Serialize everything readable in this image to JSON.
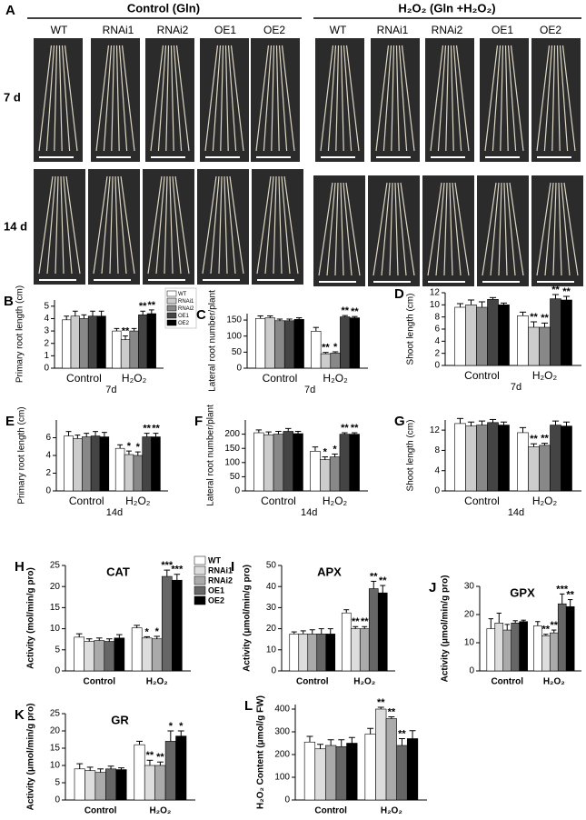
{
  "panel_a": {
    "letter": "A",
    "groups": [
      {
        "title": "Control (Gln)",
        "genotypes": [
          "WT",
          "RNAi1",
          "RNAi2",
          "OE1",
          "OE2"
        ]
      },
      {
        "title": "H₂O₂ (Gln +H₂O₂)",
        "genotypes": [
          "WT",
          "RNAi1",
          "RNAi2",
          "OE1",
          "OE2"
        ]
      }
    ],
    "rows": [
      "7 d",
      "14 d"
    ]
  },
  "chart_data": [
    {
      "type": "bar",
      "panel": "B",
      "ylabel": "Primary root length (cm)",
      "categories": [
        "Control",
        "H₂O₂"
      ],
      "note": "7d",
      "ylim": [
        0,
        5.5
      ],
      "yticks": [
        0,
        1,
        2,
        3,
        4,
        5
      ],
      "legend": true,
      "series": [
        {
          "name": "WT",
          "color": "#ffffff",
          "values": [
            3.9,
            3.0
          ],
          "errors": [
            0.3,
            0.2
          ],
          "annotations": [
            null,
            null
          ]
        },
        {
          "name": "RNAi1",
          "color": "#cccccc",
          "values": [
            4.2,
            2.3
          ],
          "errors": [
            0.4,
            0.3
          ],
          "annotations": [
            null,
            "**"
          ]
        },
        {
          "name": "RNAi2",
          "color": "#888888",
          "values": [
            4.0,
            3.0
          ],
          "errors": [
            0.3,
            0.2
          ],
          "annotations": [
            null,
            null
          ]
        },
        {
          "name": "OE1",
          "color": "#444444",
          "values": [
            4.2,
            4.3
          ],
          "errors": [
            0.4,
            0.3
          ],
          "annotations": [
            null,
            "**"
          ]
        },
        {
          "name": "OE2",
          "color": "#000000",
          "values": [
            4.2,
            4.4
          ],
          "errors": [
            0.4,
            0.3
          ],
          "annotations": [
            null,
            "**"
          ]
        }
      ]
    },
    {
      "type": "bar",
      "panel": "C",
      "ylabel": "Lateral root number/plant",
      "categories": [
        "Control",
        "H₂O₂"
      ],
      "note": "7d",
      "ylim": [
        0,
        170
      ],
      "yticks": [
        0,
        50,
        100,
        150
      ],
      "series": [
        {
          "color": "#ffffff",
          "values": [
            155,
            115
          ],
          "errors": [
            8,
            12
          ],
          "annotations": [
            null,
            null
          ]
        },
        {
          "color": "#cccccc",
          "values": [
            157,
            45
          ],
          "errors": [
            6,
            4
          ],
          "annotations": [
            null,
            "**"
          ]
        },
        {
          "color": "#888888",
          "values": [
            148,
            47
          ],
          "errors": [
            5,
            4
          ],
          "annotations": [
            null,
            "*"
          ]
        },
        {
          "color": "#444444",
          "values": [
            148,
            160
          ],
          "errors": [
            5,
            4
          ],
          "annotations": [
            null,
            "**"
          ]
        },
        {
          "color": "#000000",
          "values": [
            152,
            157
          ],
          "errors": [
            5,
            4
          ],
          "annotations": [
            null,
            "**"
          ]
        }
      ]
    },
    {
      "type": "bar",
      "panel": "D",
      "ylabel": "Shoot length (cm)",
      "categories": [
        "Control",
        "H₂O₂"
      ],
      "note": "7d",
      "ylim": [
        0,
        12
      ],
      "yticks": [
        0,
        2,
        4,
        6,
        8,
        10,
        12
      ],
      "series": [
        {
          "color": "#ffffff",
          "values": [
            9.6,
            8.2
          ],
          "errors": [
            0.6,
            0.6
          ],
          "annotations": [
            null,
            null
          ]
        },
        {
          "color": "#cccccc",
          "values": [
            10.0,
            6.3
          ],
          "errors": [
            0.8,
            0.9
          ],
          "annotations": [
            null,
            "**"
          ]
        },
        {
          "color": "#888888",
          "values": [
            9.6,
            6.3
          ],
          "errors": [
            0.9,
            0.7
          ],
          "annotations": [
            null,
            "**"
          ]
        },
        {
          "color": "#444444",
          "values": [
            10.9,
            11.0
          ],
          "errors": [
            0.3,
            0.7
          ],
          "annotations": [
            null,
            "**"
          ]
        },
        {
          "color": "#000000",
          "values": [
            10.0,
            10.8
          ],
          "errors": [
            0.3,
            0.6
          ],
          "annotations": [
            null,
            "**"
          ]
        }
      ]
    },
    {
      "type": "bar",
      "panel": "E",
      "ylabel": "Primary root length (cm)",
      "categories": [
        "Control",
        "H₂O₂"
      ],
      "note": "14d",
      "ylim": [
        0,
        8
      ],
      "yticks": [
        0,
        2,
        4,
        6
      ],
      "series": [
        {
          "color": "#ffffff",
          "values": [
            6.2,
            4.8
          ],
          "errors": [
            0.5,
            0.4
          ],
          "annotations": [
            null,
            null
          ]
        },
        {
          "color": "#cccccc",
          "values": [
            5.9,
            4.1
          ],
          "errors": [
            0.4,
            0.4
          ],
          "annotations": [
            null,
            "*"
          ]
        },
        {
          "color": "#888888",
          "values": [
            6.1,
            4.0
          ],
          "errors": [
            0.4,
            0.4
          ],
          "annotations": [
            null,
            "*"
          ]
        },
        {
          "color": "#444444",
          "values": [
            6.2,
            6.1
          ],
          "errors": [
            0.5,
            0.4
          ],
          "annotations": [
            null,
            "**"
          ]
        },
        {
          "color": "#000000",
          "values": [
            6.1,
            6.1
          ],
          "errors": [
            0.5,
            0.4
          ],
          "annotations": [
            null,
            "**"
          ]
        }
      ]
    },
    {
      "type": "bar",
      "panel": "F",
      "ylabel": "Lateral root number/plant",
      "categories": [
        "Control",
        "H₂O₂"
      ],
      "note": "14d",
      "ylim": [
        0,
        250
      ],
      "yticks": [
        0,
        50,
        100,
        150,
        200
      ],
      "series": [
        {
          "color": "#ffffff",
          "values": [
            205,
            140
          ],
          "errors": [
            10,
            15
          ],
          "annotations": [
            null,
            null
          ]
        },
        {
          "color": "#cccccc",
          "values": [
            198,
            110
          ],
          "errors": [
            10,
            10
          ],
          "annotations": [
            null,
            "*"
          ]
        },
        {
          "color": "#888888",
          "values": [
            200,
            120
          ],
          "errors": [
            10,
            10
          ],
          "annotations": [
            null,
            "*"
          ]
        },
        {
          "color": "#444444",
          "values": [
            210,
            200
          ],
          "errors": [
            10,
            5
          ],
          "annotations": [
            null,
            "**"
          ]
        },
        {
          "color": "#000000",
          "values": [
            202,
            200
          ],
          "errors": [
            8,
            5
          ],
          "annotations": [
            null,
            "**"
          ]
        }
      ]
    },
    {
      "type": "bar",
      "panel": "G",
      "ylabel": "Shoot length (cm)",
      "categories": [
        "Control",
        "H₂O₂"
      ],
      "note": "14d",
      "ylim": [
        0,
        14
      ],
      "yticks": [
        0,
        4,
        8,
        12
      ],
      "series": [
        {
          "color": "#ffffff",
          "values": [
            13.3,
            11.5
          ],
          "errors": [
            1.0,
            1.0
          ],
          "annotations": [
            null,
            null
          ]
        },
        {
          "color": "#cccccc",
          "values": [
            12.8,
            8.7
          ],
          "errors": [
            0.8,
            0.6
          ],
          "annotations": [
            null,
            "**"
          ]
        },
        {
          "color": "#888888",
          "values": [
            13.0,
            9.0
          ],
          "errors": [
            0.8,
            0.4
          ],
          "annotations": [
            null,
            "**"
          ]
        },
        {
          "color": "#444444",
          "values": [
            13.5,
            13.0
          ],
          "errors": [
            0.6,
            0.8
          ],
          "annotations": [
            null,
            null
          ]
        },
        {
          "color": "#000000",
          "values": [
            13.0,
            12.8
          ],
          "errors": [
            0.6,
            0.8
          ],
          "annotations": [
            null,
            null
          ]
        }
      ]
    },
    {
      "type": "bar",
      "panel": "H",
      "title": "CAT",
      "ylabel": "Activity (mol/min/g pro)",
      "categories": [
        "Control",
        "H₂O₂"
      ],
      "ylim": [
        0,
        25
      ],
      "yticks": [
        0,
        5,
        10,
        15,
        20,
        25
      ],
      "legend": true,
      "series": [
        {
          "name": "WT",
          "color": "#ffffff",
          "values": [
            8.0,
            10.2
          ],
          "errors": [
            0.8,
            0.6
          ],
          "annotations": [
            null,
            null
          ]
        },
        {
          "name": "RNAi1",
          "color": "#dddddd",
          "values": [
            7.0,
            7.8
          ],
          "errors": [
            0.6,
            0.3
          ],
          "annotations": [
            null,
            "*"
          ]
        },
        {
          "name": "RNAi2",
          "color": "#aaaaaa",
          "values": [
            7.2,
            7.6
          ],
          "errors": [
            0.6,
            0.6
          ],
          "annotations": [
            null,
            "*"
          ]
        },
        {
          "name": "OE1",
          "color": "#666666",
          "values": [
            7.0,
            22.4
          ],
          "errors": [
            0.6,
            1.5
          ],
          "annotations": [
            null,
            "***"
          ]
        },
        {
          "name": "OE2",
          "color": "#000000",
          "values": [
            7.8,
            21.5
          ],
          "errors": [
            0.8,
            1.4
          ],
          "annotations": [
            null,
            "***"
          ]
        }
      ]
    },
    {
      "type": "bar",
      "panel": "I",
      "title": "APX",
      "ylabel": "Activity (μmol/min/g pro)",
      "categories": [
        "Control",
        "H₂O₂"
      ],
      "ylim": [
        0,
        50
      ],
      "yticks": [
        0,
        10,
        20,
        30,
        40,
        50
      ],
      "series": [
        {
          "color": "#ffffff",
          "values": [
            17.5,
            27.5
          ],
          "errors": [
            1.0,
            1.5
          ],
          "annotations": [
            null,
            null
          ]
        },
        {
          "color": "#dddddd",
          "values": [
            17.5,
            20
          ],
          "errors": [
            1.5,
            1.0
          ],
          "annotations": [
            null,
            "**"
          ]
        },
        {
          "color": "#aaaaaa",
          "values": [
            17.5,
            20
          ],
          "errors": [
            2.0,
            1.0
          ],
          "annotations": [
            null,
            "**"
          ]
        },
        {
          "color": "#666666",
          "values": [
            17.5,
            39
          ],
          "errors": [
            2.5,
            3.5
          ],
          "annotations": [
            null,
            "**"
          ]
        },
        {
          "color": "#000000",
          "values": [
            17.5,
            37
          ],
          "errors": [
            2.5,
            3.5
          ],
          "annotations": [
            null,
            "**"
          ]
        }
      ]
    },
    {
      "type": "bar",
      "panel": "J",
      "title": "GPX",
      "ylabel": "Activity (μmol/min/g pro)",
      "categories": [
        "Control",
        "H₂O₂"
      ],
      "ylim": [
        0,
        30
      ],
      "yticks": [
        0,
        10,
        20,
        30
      ],
      "series": [
        {
          "color": "#ffffff",
          "values": [
            15,
            16
          ],
          "errors": [
            3.5,
            1.5
          ],
          "annotations": [
            null,
            null
          ]
        },
        {
          "color": "#dddddd",
          "values": [
            17,
            12.5
          ],
          "errors": [
            3.5,
            0.5
          ],
          "annotations": [
            null,
            "**"
          ]
        },
        {
          "color": "#aaaaaa",
          "values": [
            14.5,
            13.5
          ],
          "errors": [
            2.0,
            1.0
          ],
          "annotations": [
            null,
            "**"
          ]
        },
        {
          "color": "#666666",
          "values": [
            17,
            23.8
          ],
          "errors": [
            0.8,
            3.5
          ],
          "annotations": [
            null,
            "***"
          ]
        },
        {
          "color": "#000000",
          "values": [
            17.5,
            22.8
          ],
          "errors": [
            0.5,
            2.5
          ],
          "annotations": [
            null,
            "**"
          ]
        }
      ]
    },
    {
      "type": "bar",
      "panel": "K",
      "title": "GR",
      "ylabel": "Activity (μmol/min/g pro)",
      "categories": [
        "Control",
        "H₂O₂"
      ],
      "ylim": [
        0,
        25
      ],
      "yticks": [
        0,
        5,
        10,
        15,
        20,
        25
      ],
      "series": [
        {
          "color": "#ffffff",
          "values": [
            9,
            16
          ],
          "errors": [
            1.5,
            1.0
          ],
          "annotations": [
            null,
            null
          ]
        },
        {
          "color": "#dddddd",
          "values": [
            8.5,
            10
          ],
          "errors": [
            1.0,
            1.5
          ],
          "annotations": [
            null,
            "**"
          ]
        },
        {
          "color": "#aaaaaa",
          "values": [
            8,
            10
          ],
          "errors": [
            1.0,
            1.0
          ],
          "annotations": [
            null,
            "**"
          ]
        },
        {
          "color": "#666666",
          "values": [
            9,
            17
          ],
          "errors": [
            0.8,
            3.0
          ],
          "annotations": [
            null,
            "*"
          ]
        },
        {
          "color": "#000000",
          "values": [
            8.8,
            18.5
          ],
          "errors": [
            0.5,
            1.5
          ],
          "annotations": [
            null,
            "*"
          ]
        }
      ]
    },
    {
      "type": "bar",
      "panel": "L",
      "ylabel": "H₂O₂ Content (μmol/g FW)",
      "categories": [
        "Control",
        "H₂O₂"
      ],
      "ylim": [
        0,
        420
      ],
      "yticks": [
        0,
        100,
        200,
        300,
        400
      ],
      "series": [
        {
          "color": "#ffffff",
          "values": [
            255,
            290
          ],
          "errors": [
            25,
            25
          ],
          "annotations": [
            null,
            null
          ]
        },
        {
          "color": "#dddddd",
          "values": [
            225,
            400
          ],
          "errors": [
            20,
            8
          ],
          "annotations": [
            null,
            "**"
          ]
        },
        {
          "color": "#aaaaaa",
          "values": [
            240,
            358
          ],
          "errors": [
            25,
            8
          ],
          "annotations": [
            null,
            "**"
          ]
        },
        {
          "color": "#666666",
          "values": [
            235,
            240
          ],
          "errors": [
            30,
            30
          ],
          "annotations": [
            null,
            "**"
          ]
        },
        {
          "color": "#000000",
          "values": [
            250,
            270
          ],
          "errors": [
            25,
            35
          ],
          "annotations": [
            null,
            null
          ]
        }
      ]
    }
  ]
}
